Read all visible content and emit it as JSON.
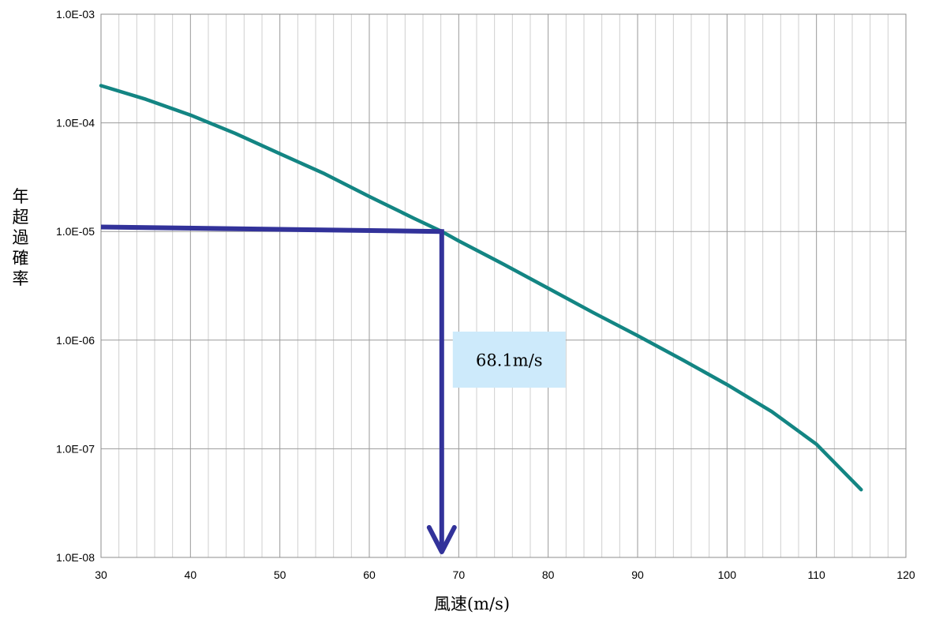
{
  "chart_data": {
    "type": "line",
    "xlabel": "風速(m/s)",
    "ylabel": "年超過確率",
    "xlim": [
      30,
      120
    ],
    "ylim": [
      1e-08,
      0.001
    ],
    "yscale": "log",
    "grid": true,
    "x_ticks": [
      "30",
      "40",
      "50",
      "60",
      "70",
      "80",
      "90",
      "100",
      "110",
      "120"
    ],
    "y_ticks": [
      "1.0E-08",
      "1.0E-07",
      "1.0E-06",
      "1.0E-05",
      "1.0E-04",
      "1.0E-03"
    ],
    "series": [
      {
        "color": "#138583",
        "x": [
          30,
          35,
          40,
          45,
          50,
          55,
          60,
          65,
          68.1,
          70,
          75,
          80,
          85,
          90,
          95,
          100,
          105,
          110,
          115
        ],
        "y": [
          0.00022,
          0.000165,
          0.000118,
          8e-05,
          5.2e-05,
          3.4e-05,
          2.1e-05,
          1.32e-05,
          1e-05,
          8.2e-06,
          5e-06,
          3e-06,
          1.8e-06,
          1.1e-06,
          6.6e-07,
          3.9e-07,
          2.2e-07,
          1.1e-07,
          4.2e-08
        ]
      }
    ],
    "annotations": {
      "guide_color": "#32329a",
      "threshold_prob": 1e-05,
      "guide_start_prob": 1.1e-05,
      "arrow_x": 68.1,
      "label": "68.1m/s",
      "label_bg": "#cdeafb"
    }
  }
}
